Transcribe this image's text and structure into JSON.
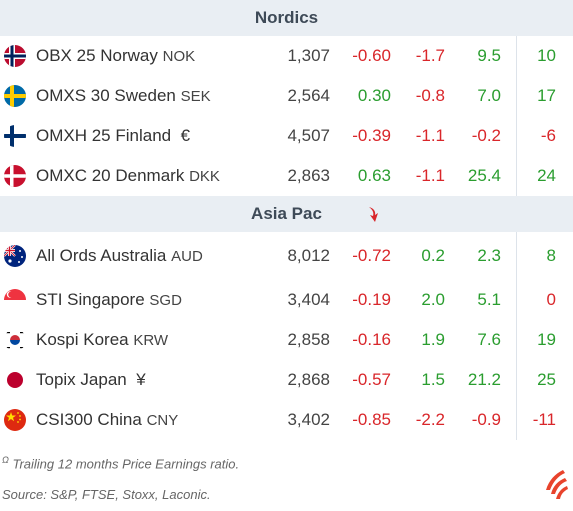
{
  "sections": [
    {
      "title": "Nordics",
      "rows": [
        {
          "name": "OBX 25 Norway",
          "currency": "NOK",
          "flag": "norway-flag-icon",
          "value": "1,307",
          "d1": "-0.60",
          "d2": "-1.7",
          "d3": "9.5",
          "pe": "10"
        },
        {
          "name": "OMXS 30 Sweden",
          "currency": "SEK",
          "flag": "sweden-flag-icon",
          "value": "2,564",
          "d1": "0.30",
          "d2": "-0.8",
          "d3": "7.0",
          "pe": "17"
        },
        {
          "name": "OMXH 25 Finland",
          "currency": "€",
          "flag": "finland-flag-icon",
          "value": "4,507",
          "d1": "-0.39",
          "d2": "-1.1",
          "d3": "-0.2",
          "pe": "-6"
        },
        {
          "name": "OMXC 20 Denmark",
          "currency": "DKK",
          "flag": "denmark-flag-icon",
          "value": "2,863",
          "d1": "0.63",
          "d2": "-1.1",
          "d3": "25.4",
          "pe": "24"
        }
      ]
    },
    {
      "title": "Asia Pac",
      "rows": [
        {
          "name": "All Ords Australia",
          "currency": "AUD",
          "flag": "australia-flag-icon",
          "value": "8,012",
          "d1": "-0.72",
          "d2": "0.2",
          "d3": "2.3",
          "pe": "8"
        },
        {
          "name": "STI Singapore",
          "currency": "SGD",
          "flag": "singapore-flag-icon",
          "value": "3,404",
          "d1": "-0.19",
          "d2": "2.0",
          "d3": "5.1",
          "pe": "0"
        },
        {
          "name": "Kospi Korea",
          "currency": "KRW",
          "flag": "korea-flag-icon",
          "value": "2,858",
          "d1": "-0.16",
          "d2": "1.9",
          "d3": "7.6",
          "pe": "19"
        },
        {
          "name": "Topix Japan",
          "currency": "¥",
          "flag": "japan-flag-icon",
          "value": "2,868",
          "d1": "-0.57",
          "d2": "1.5",
          "d3": "21.2",
          "pe": "25"
        },
        {
          "name": "CSI300 China",
          "currency": "CNY",
          "flag": "china-flag-icon",
          "value": "3,402",
          "d1": "-0.85",
          "d2": "-2.2",
          "d3": "-0.9",
          "pe": "-11"
        }
      ]
    }
  ],
  "footnotes": {
    "pe_marker": "Ω",
    "pe_note": "Trailing 12 months Price Earnings ratio.",
    "source": "Source: S&P, FTSE, Stoxx, Laconic."
  },
  "colors": {
    "negative": "#d9262a",
    "positive": "#2a9d2f",
    "header_bg": "#e9eef3",
    "accent": "#e8432c"
  }
}
